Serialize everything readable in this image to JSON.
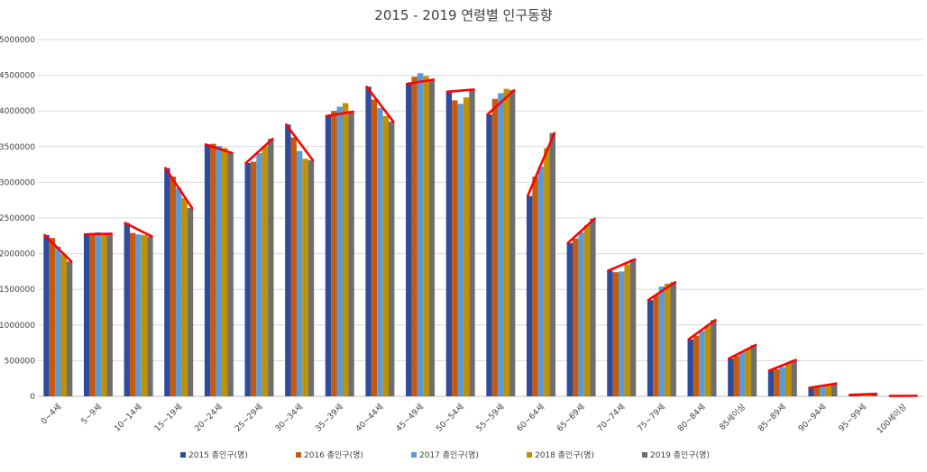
{
  "chart_data": {
    "type": "bar",
    "title": "2015 - 2019 연령별 인구동향",
    "xlabel": "",
    "ylabel": "",
    "ylim": [
      0,
      5000000
    ],
    "yticks": [
      0,
      500000,
      1000000,
      1500000,
      2000000,
      2500000,
      3000000,
      3500000,
      4000000,
      4500000,
      5000000
    ],
    "grid": true,
    "legend_position": "bottom",
    "categories": [
      "0~4세",
      "5~9세",
      "10~14세",
      "15~19세",
      "20~24세",
      "25~29세",
      "30~34세",
      "35~39세",
      "40~44세",
      "45~49세",
      "50~54세",
      "55~59세",
      "60~64세",
      "65~69세",
      "70~74세",
      "75~79세",
      "80~84세",
      "85세이상",
      "85~89세",
      "90~94세",
      "95~99세",
      "100세이상"
    ],
    "series": [
      {
        "name": "2015 총인구(명)",
        "color": "#2f4b9b",
        "values": [
          2260000,
          2270000,
          2430000,
          3200000,
          3530000,
          3270000,
          3810000,
          3930000,
          4340000,
          4380000,
          4270000,
          3950000,
          2810000,
          2150000,
          1760000,
          1350000,
          800000,
          530000,
          360000,
          120000,
          20000,
          5000
        ]
      },
      {
        "name": "2016 총인구(명)",
        "color": "#c55a11",
        "values": [
          2220000,
          2290000,
          2290000,
          3080000,
          3540000,
          3290000,
          3630000,
          4000000,
          4160000,
          4480000,
          4150000,
          4170000,
          3080000,
          2210000,
          1740000,
          1420000,
          850000,
          570000,
          380000,
          130000,
          20000,
          5000
        ]
      },
      {
        "name": "2017 총인구(명)",
        "color": "#5b9bd5",
        "values": [
          2100000,
          2300000,
          2270000,
          2920000,
          3510000,
          3410000,
          3440000,
          4060000,
          4040000,
          4530000,
          4100000,
          4250000,
          3220000,
          2300000,
          1750000,
          1540000,
          920000,
          620000,
          410000,
          140000,
          25000,
          6000
        ]
      },
      {
        "name": "2018 총인구(명)",
        "color": "#bf9000",
        "values": [
          1990000,
          2290000,
          2260000,
          2780000,
          3480000,
          3510000,
          3330000,
          4110000,
          3930000,
          4490000,
          4190000,
          4310000,
          3480000,
          2400000,
          1850000,
          1580000,
          990000,
          670000,
          460000,
          160000,
          30000,
          7000
        ]
      },
      {
        "name": "2019 총인구(명)",
        "color": "#6e6e6e",
        "values": [
          1890000,
          2280000,
          2240000,
          2640000,
          3410000,
          3610000,
          3310000,
          3990000,
          3850000,
          4440000,
          4300000,
          4290000,
          3690000,
          2490000,
          1920000,
          1600000,
          1070000,
          720000,
          510000,
          180000,
          35000,
          8000
        ]
      }
    ]
  }
}
